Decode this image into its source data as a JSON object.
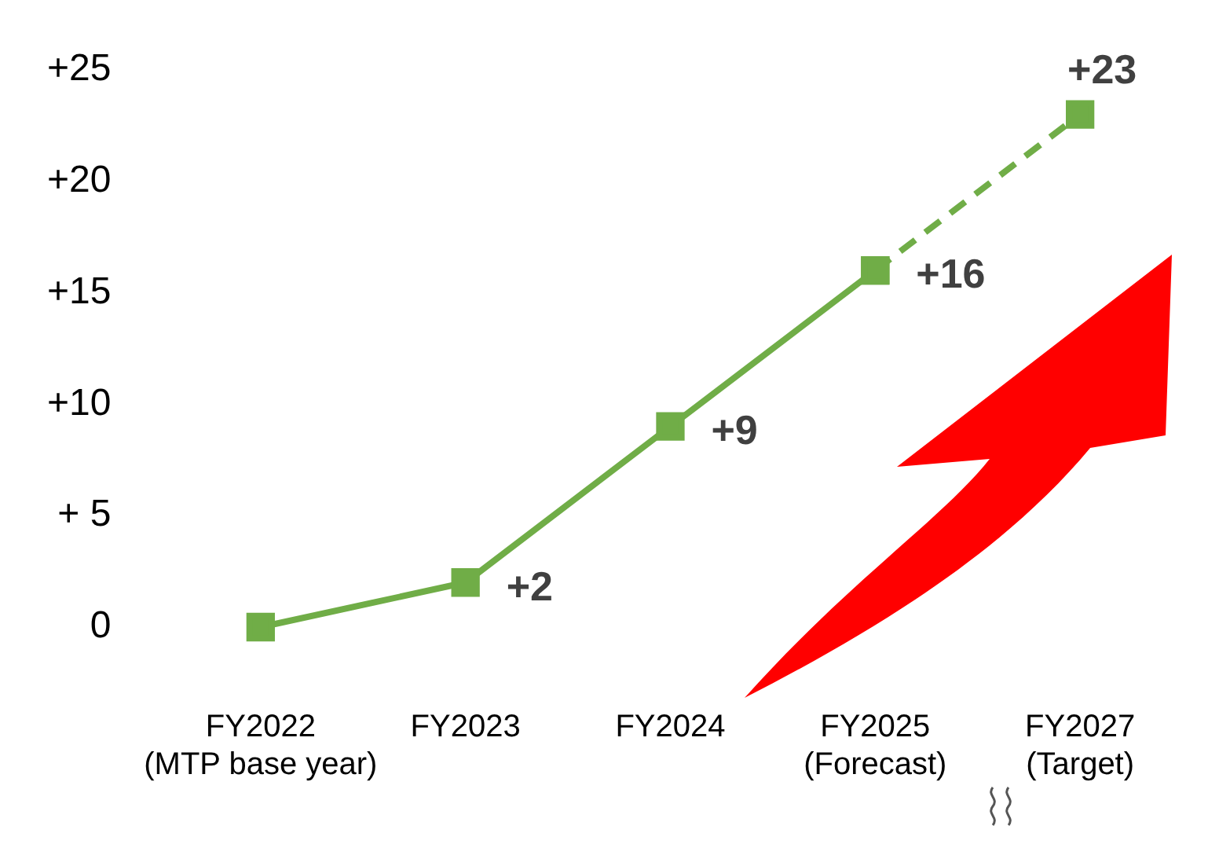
{
  "chart_data": {
    "type": "line",
    "categories": [
      "FY2022\n(MTP base year)",
      "FY2023",
      "FY2024",
      "FY2025\n(Forecast)",
      "FY2027\n(Target)"
    ],
    "series": [
      {
        "color": "#70ad47",
        "values": [
          0,
          2,
          9,
          16,
          null
        ],
        "line_style": "solid",
        "value_labels": [
          null,
          "+2",
          "+9",
          "+16",
          null
        ]
      },
      {
        "color": "#70ad47",
        "values": [
          null,
          null,
          null,
          16,
          23
        ],
        "line_style": "dashed",
        "value_labels": [
          null,
          null,
          null,
          null,
          "+23"
        ]
      }
    ],
    "ylim": [
      0,
      25
    ],
    "yticks": [
      {
        "value": 0,
        "label": "0"
      },
      {
        "value": 5,
        "label": "+ 5"
      },
      {
        "value": 10,
        "label": "+10"
      },
      {
        "value": 15,
        "label": "+15"
      },
      {
        "value": 20,
        "label": "+20"
      },
      {
        "value": 25,
        "label": "+25"
      }
    ],
    "grid": false,
    "legend": false,
    "marker": "square"
  }
}
